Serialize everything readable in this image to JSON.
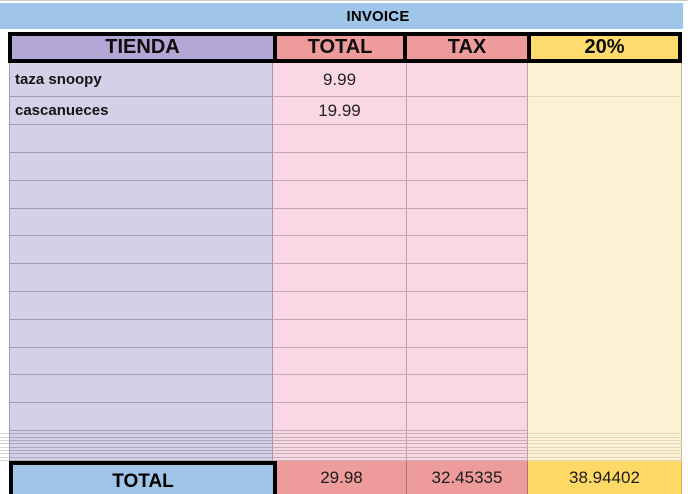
{
  "banner": {
    "title": "INVOICE"
  },
  "header": {
    "columns": [
      "TIENDA",
      "TOTAL",
      "TAX",
      "20%"
    ]
  },
  "rows": [
    {
      "tienda": "taza snoopy",
      "total": "9.99",
      "tax": "",
      "pct": ""
    },
    {
      "tienda": "cascanueces",
      "total": "19.99",
      "tax": "",
      "pct": ""
    }
  ],
  "footer": {
    "label": "TOTAL",
    "total": "29.98",
    "tax": "32.45335",
    "pct": "38.94402"
  },
  "colors": {
    "banner_blue": "#9fc5e8",
    "header_purple": "#b4a7d6",
    "header_salmon": "#ee9b9b",
    "header_yellow": "#ffdb6e",
    "body_purple": "#d6cfe8",
    "body_pink": "#fad7e4",
    "body_cream": "#fcf1d2",
    "footer_blue": "#9fc5e8",
    "footer_salmon": "#ee9b9b",
    "footer_yellow": "#ffd966",
    "border_black": "#000000"
  }
}
